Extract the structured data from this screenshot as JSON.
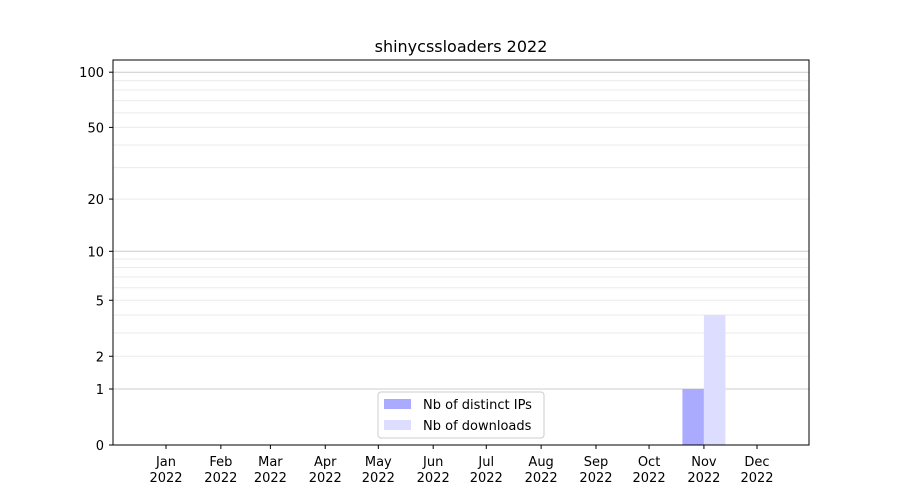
{
  "chart_data": {
    "type": "bar",
    "title": "shinycssloaders 2022",
    "xlabel": "",
    "ylabel": "",
    "y_scale": "symlog",
    "ylim": [
      0,
      116
    ],
    "y_ticks": [
      0,
      1,
      2,
      5,
      10,
      20,
      50,
      100
    ],
    "x_ticks": [
      {
        "date": "2022-01-01",
        "label": [
          "Jan",
          "2022"
        ]
      },
      {
        "date": "2022-02-01",
        "label": [
          "Feb",
          "2022"
        ]
      },
      {
        "date": "2022-03-01",
        "label": [
          "Mar",
          "2022"
        ]
      },
      {
        "date": "2022-04-01",
        "label": [
          "Apr",
          "2022"
        ]
      },
      {
        "date": "2022-05-01",
        "label": [
          "May",
          "2022"
        ]
      },
      {
        "date": "2022-06-01",
        "label": [
          "Jun",
          "2022"
        ]
      },
      {
        "date": "2022-07-01",
        "label": [
          "Jul",
          "2022"
        ]
      },
      {
        "date": "2022-08-01",
        "label": [
          "Aug",
          "2022"
        ]
      },
      {
        "date": "2022-09-01",
        "label": [
          "Sep",
          "2022"
        ]
      },
      {
        "date": "2022-10-01",
        "label": [
          "Oct",
          "2022"
        ]
      },
      {
        "date": "2022-11-01",
        "label": [
          "Nov",
          "2022"
        ]
      },
      {
        "date": "2022-12-01",
        "label": [
          "Dec",
          "2022"
        ]
      }
    ],
    "grid": true,
    "legend_position": "bottom-center",
    "series": [
      {
        "name": "Nb of distinct IPs",
        "color": "#aaaaff",
        "points": [
          {
            "date": "2022-11-01",
            "value": 1
          }
        ]
      },
      {
        "name": "Nb of downloads",
        "color": "#ddddff",
        "points": [
          {
            "date": "2022-11-01",
            "value": 4
          }
        ]
      }
    ]
  }
}
